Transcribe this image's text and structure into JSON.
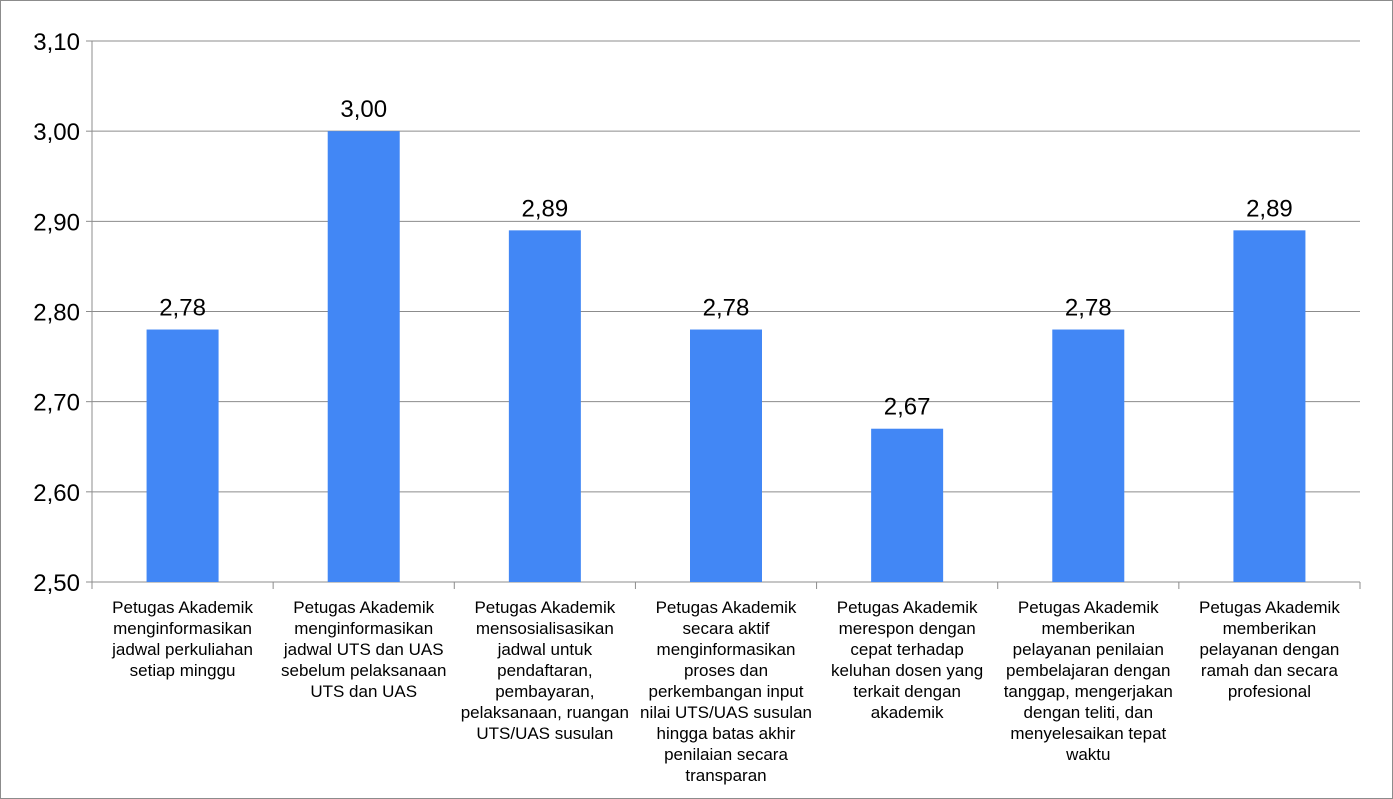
{
  "chart_data": {
    "type": "bar",
    "title": "",
    "xlabel": "",
    "ylabel": "",
    "ylim": [
      2.5,
      3.1
    ],
    "ytick_values": [
      2.5,
      2.6,
      2.7,
      2.8,
      2.9,
      3.0,
      3.1
    ],
    "ytick_labels": [
      "2,50",
      "2,60",
      "2,70",
      "2,80",
      "2,90",
      "3,00",
      "3,10"
    ],
    "grid": true,
    "bar_color": "#4287f5",
    "categories": [
      "Petugas Akademik menginformasikan jadwal perkuliahan setiap minggu",
      "Petugas Akademik menginformasikan jadwal UTS dan UAS sebelum pelaksanaan UTS dan UAS",
      "Petugas Akademik mensosialisasikan jadwal untuk pendaftaran, pembayaran, pelaksanaan, ruangan UTS/UAS susulan",
      "Petugas Akademik secara aktif menginformasikan proses dan perkembangan input nilai UTS/UAS susulan hingga batas akhir penilaian secara transparan",
      "Petugas Akademik merespon dengan cepat terhadap keluhan dosen yang terkait dengan akademik",
      "Petugas Akademik memberikan pelayanan penilaian pembelajaran dengan tanggap, mengerjakan dengan teliti, dan menyelesaikan tepat waktu",
      "Petugas Akademik memberikan pelayanan dengan ramah dan secara profesional"
    ],
    "values": [
      2.78,
      3.0,
      2.89,
      2.78,
      2.67,
      2.78,
      2.89
    ],
    "value_labels": [
      "2,78",
      "3,00",
      "2,89",
      "2,78",
      "2,67",
      "2,78",
      "2,89"
    ]
  }
}
